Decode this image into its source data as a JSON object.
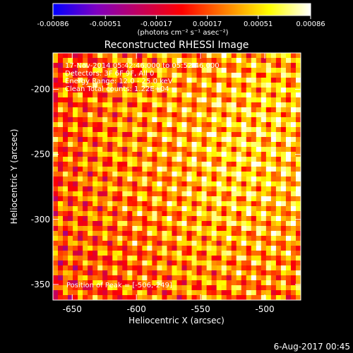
{
  "chart_data": {
    "type": "heatmap",
    "title": "Reconstructed RHESSI Image",
    "xlabel": "Heliocentric X (arcsec)",
    "ylabel": "Heliocentric Y (arcsec)",
    "xlim": [
      -665,
      -472
    ],
    "ylim": [
      -362,
      -172
    ],
    "x_ticks": [
      "-650",
      "-600",
      "-550",
      "-500"
    ],
    "x_tick_values": [
      -650,
      -600,
      -550,
      -500
    ],
    "y_ticks": [
      "-200",
      "-250",
      "-300",
      "-350"
    ],
    "y_tick_values": [
      -200,
      -250,
      -300,
      -350
    ],
    "grid": false,
    "colorbar": {
      "range": [
        -0.00086,
        0.00086
      ],
      "tick_labels": [
        "-0.00086",
        "-0.00051",
        "-0.00017",
        "0.00017",
        "0.00051",
        "0.00086"
      ],
      "tick_values": [
        -0.00086,
        -0.00051,
        -0.00017,
        0.00017,
        0.00051,
        0.00086
      ],
      "unit_label": "(photons cm⁻² s⁻¹ asec⁻²)",
      "colors": [
        "#0000ff",
        "#7f00c0",
        "#c00060",
        "#ff0000",
        "#ff8000",
        "#ffff00",
        "#ffffff"
      ]
    },
    "info_lines": [
      "17-Nov-2014 05:42:46.000 to 05:52:46.000",
      "Detectors: 3F 6F 9F, All 0",
      "Energy Range: 12.0 - 25.0 keV",
      "Clean     Total counts: 1.22E+04"
    ],
    "peak_label": "Position of Peak = [-506,-249]",
    "peak": [
      -506,
      -249
    ]
  },
  "footer_timestamp": "6-Aug-2017 00:45"
}
